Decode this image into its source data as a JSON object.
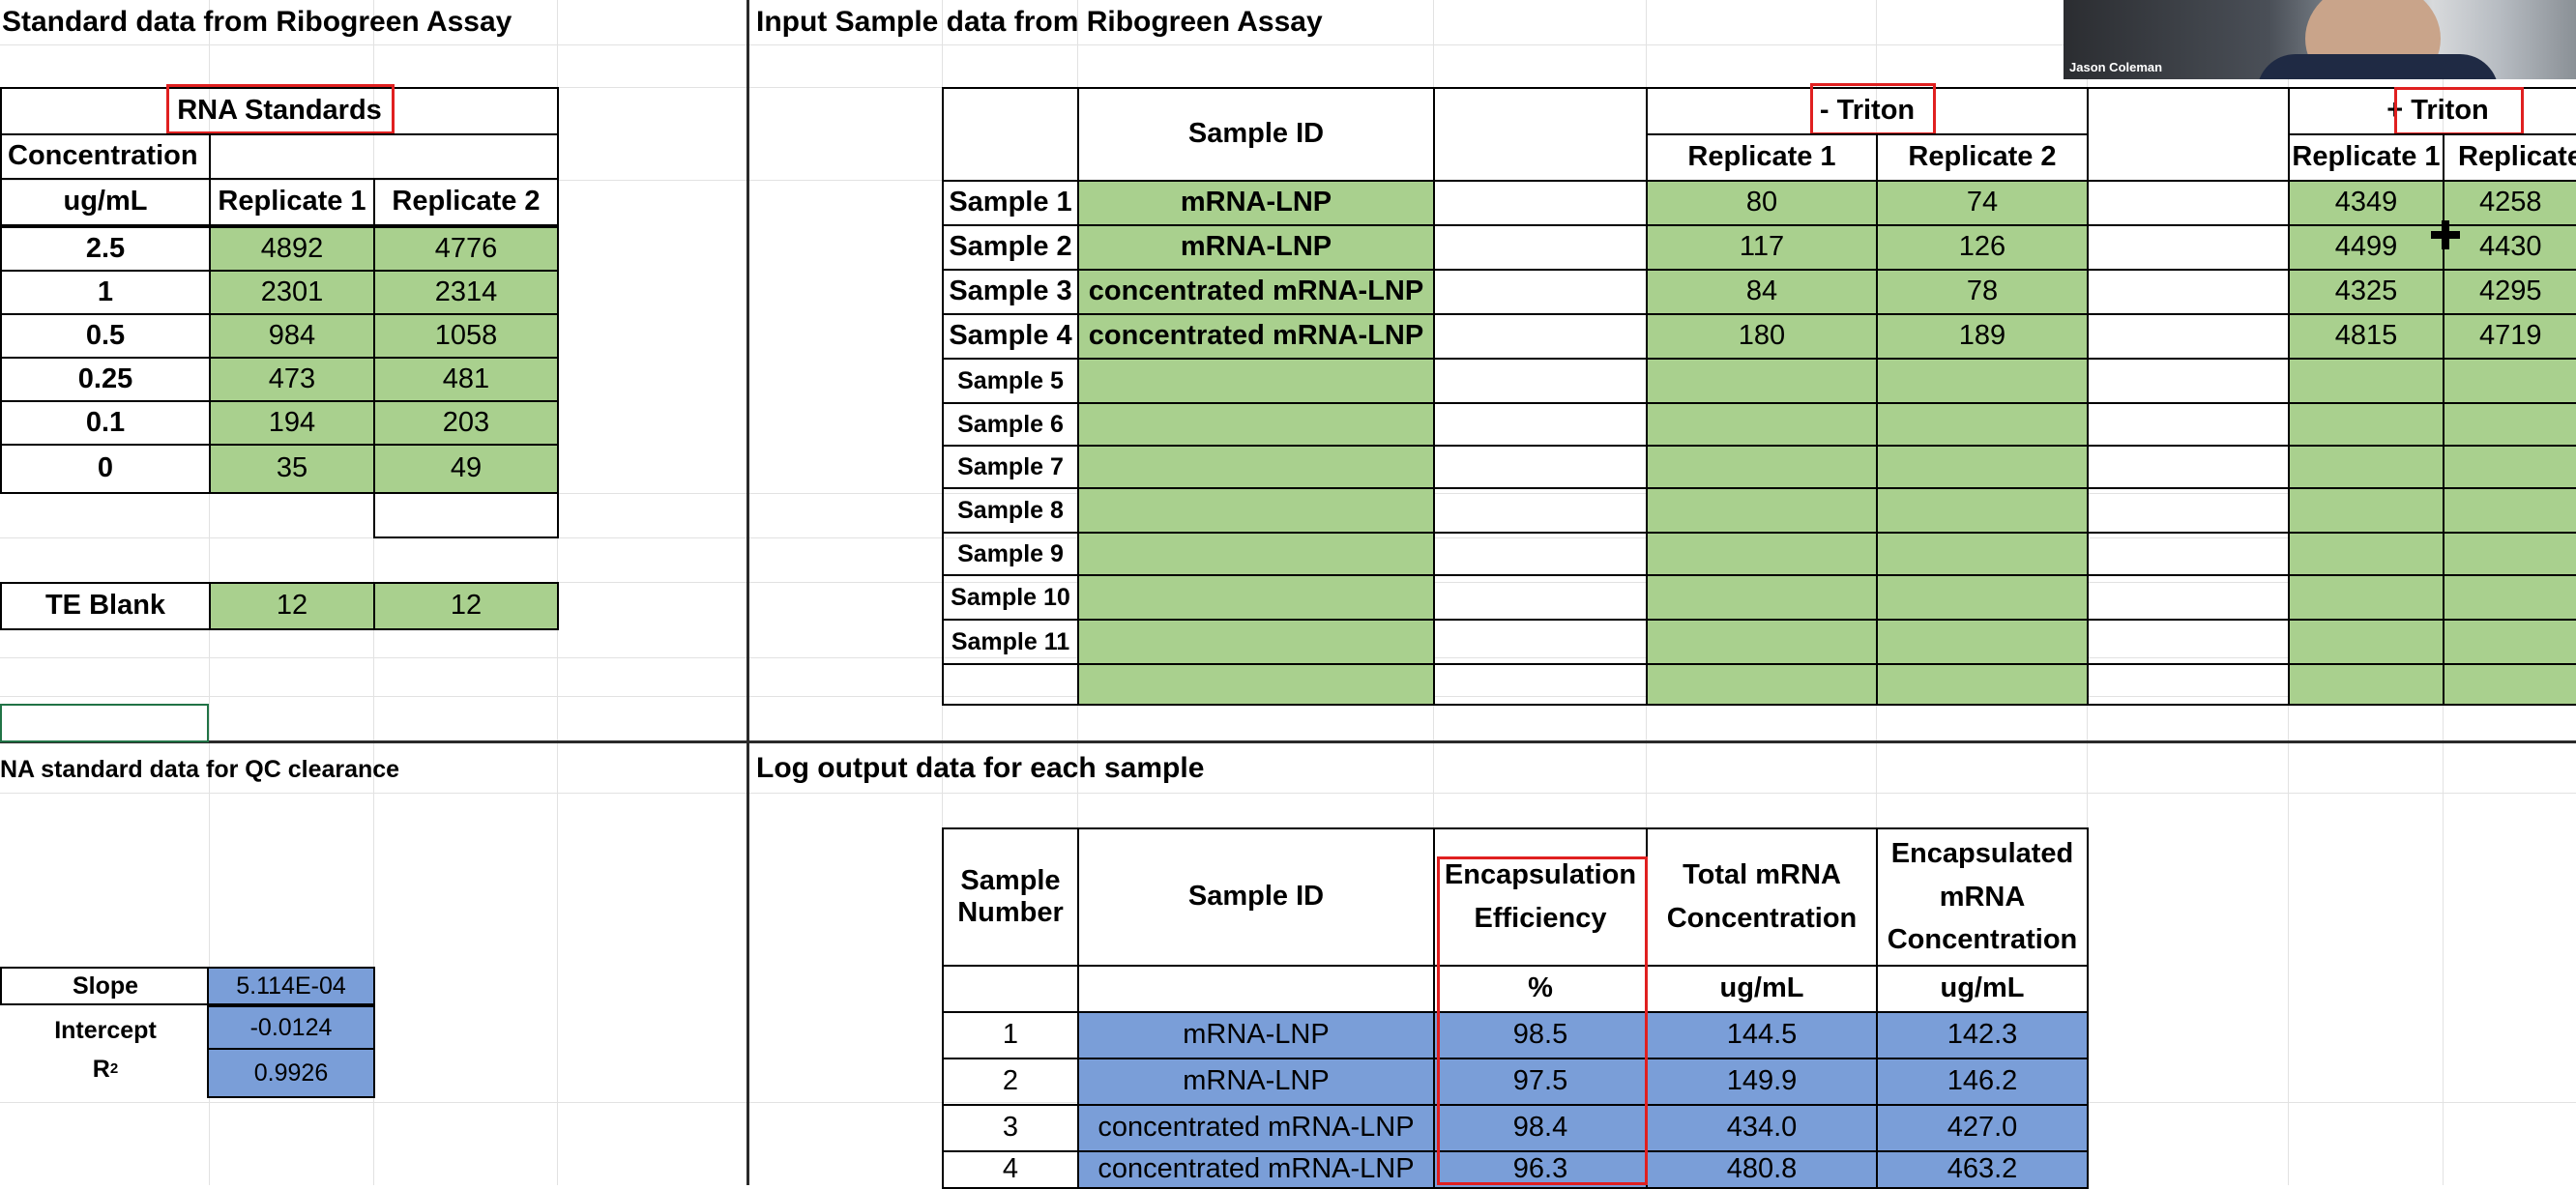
{
  "standards": {
    "title": "Standard data from Ribogreen Assay",
    "table_header": "RNA Standards",
    "col_concentration": "Concentration",
    "col_unit": "ug/mL",
    "col_rep1": "Replicate 1",
    "col_rep2": "Replicate 2",
    "rows": [
      {
        "conc": "2.5",
        "rep1": "4892",
        "rep2": "4776"
      },
      {
        "conc": "1",
        "rep1": "2301",
        "rep2": "2314"
      },
      {
        "conc": "0.5",
        "rep1": "984",
        "rep2": "1058"
      },
      {
        "conc": "0.25",
        "rep1": "473",
        "rep2": "481"
      },
      {
        "conc": "0.1",
        "rep1": "194",
        "rep2": "203"
      },
      {
        "conc": "0",
        "rep1": "35",
        "rep2": "49"
      }
    ],
    "blank_label": "TE Blank",
    "blank_rep1": "12",
    "blank_rep2": "12"
  },
  "qc": {
    "title": "NA standard data for QC clearance",
    "slope_label": "Slope",
    "slope_value": "5.114E-04",
    "intercept_label": "Intercept",
    "intercept_value": "-0.0124",
    "r2_label": "R",
    "r2_sup": "2",
    "r2_value": "0.9926"
  },
  "input": {
    "title": "Input Sample data from Ribogreen Assay",
    "col_sample_id": "Sample ID",
    "minus_triton": "- Triton",
    "plus_triton": "+ Triton",
    "col_rep1": "Replicate 1",
    "col_rep2": "Replicate 2",
    "col_rep2_cut": "Replicate",
    "rows": [
      {
        "label": "Sample 1",
        "id": "mRNA-LNP",
        "m1": "80",
        "m2": "74",
        "p1": "4349",
        "p2": "4258"
      },
      {
        "label": "Sample 2",
        "id": "mRNA-LNP",
        "m1": "117",
        "m2": "126",
        "p1": "4499",
        "p2": "4430"
      },
      {
        "label": "Sample 3",
        "id": "concentrated mRNA-LNP",
        "m1": "84",
        "m2": "78",
        "p1": "4325",
        "p2": "4295"
      },
      {
        "label": "Sample 4",
        "id": "concentrated mRNA-LNP",
        "m1": "180",
        "m2": "189",
        "p1": "4815",
        "p2": "4719"
      },
      {
        "label": "Sample 5",
        "id": "",
        "m1": "",
        "m2": "",
        "p1": "",
        "p2": ""
      },
      {
        "label": "Sample 6",
        "id": "",
        "m1": "",
        "m2": "",
        "p1": "",
        "p2": ""
      },
      {
        "label": "Sample 7",
        "id": "",
        "m1": "",
        "m2": "",
        "p1": "",
        "p2": ""
      },
      {
        "label": "Sample 8",
        "id": "",
        "m1": "",
        "m2": "",
        "p1": "",
        "p2": ""
      },
      {
        "label": "Sample 9",
        "id": "",
        "m1": "",
        "m2": "",
        "p1": "",
        "p2": ""
      },
      {
        "label": "Sample 10",
        "id": "",
        "m1": "",
        "m2": "",
        "p1": "",
        "p2": ""
      },
      {
        "label": "Sample 11",
        "id": "",
        "m1": "",
        "m2": "",
        "p1": "",
        "p2": ""
      },
      {
        "label": "",
        "id": "",
        "m1": "",
        "m2": "",
        "p1": "",
        "p2": ""
      }
    ]
  },
  "output": {
    "title": "Log output data for each sample",
    "col_number": "Sample Number",
    "col_sample_id": "Sample ID",
    "col_ee": "Encapsulation Efficiency",
    "col_total": "Total mRNA Concentration",
    "col_encap": "Encapsulated mRNA Concentration",
    "unit_ee": "%",
    "unit_total": "ug/mL",
    "unit_encap": "ug/mL",
    "rows": [
      {
        "n": "1",
        "id": "mRNA-LNP",
        "ee": "98.5",
        "total": "144.5",
        "encap": "142.3"
      },
      {
        "n": "2",
        "id": "mRNA-LNP",
        "ee": "97.5",
        "total": "149.9",
        "encap": "146.2"
      },
      {
        "n": "3",
        "id": "concentrated mRNA-LNP",
        "ee": "98.4",
        "total": "434.0",
        "encap": "427.0"
      },
      {
        "n": "4",
        "id": "concentrated mRNA-LNP",
        "ee": "96.3",
        "total": "480.8",
        "encap": "463.2"
      }
    ]
  },
  "video": {
    "name": "Jason Coleman"
  },
  "colors": {
    "input_fill": "#a9d08e",
    "output_fill": "#7a9ed8",
    "highlight": "#e02020"
  }
}
